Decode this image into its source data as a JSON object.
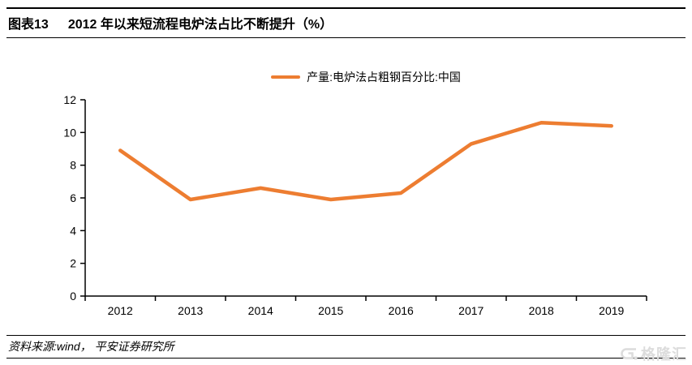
{
  "figure": {
    "label": "图表13",
    "title": "2012 年以来短流程电炉法占比不断提升（%）"
  },
  "legend": {
    "label": "产量:电炉法占粗钢百分比:中国"
  },
  "source": {
    "text": "资料来源:wind， 平安证券研究所"
  },
  "watermark": {
    "text": "格隆汇"
  },
  "chart_data": {
    "type": "line",
    "title": "2012 年以来短流程电炉法占比不断提升（%）",
    "categories": [
      "2012",
      "2013",
      "2014",
      "2015",
      "2016",
      "2017",
      "2018",
      "2019"
    ],
    "series": [
      {
        "name": "产量:电炉法占粗钢百分比:中国",
        "color": "#ED7D31",
        "values": [
          8.9,
          5.9,
          6.6,
          5.9,
          6.3,
          9.3,
          10.6,
          10.4
        ]
      }
    ],
    "xlabel": "",
    "ylabel": "",
    "ylim": [
      0,
      12
    ],
    "yticks": [
      0,
      2,
      4,
      6,
      8,
      10,
      12
    ],
    "legend_position": "top",
    "grid": false,
    "axis_color": "#000000"
  }
}
